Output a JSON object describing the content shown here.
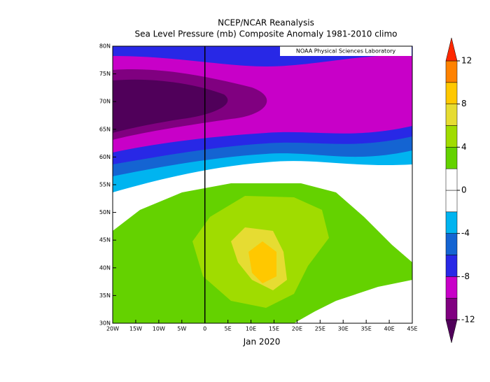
{
  "title": "NCEP/NCAR Reanalysis",
  "subtitle": "Sea Level Pressure (mb) Composite Anomaly 1981-2010 climo",
  "credit": "NOAA Physical Sciences Laboratory",
  "period": "Jan 2020",
  "map": {
    "xlim": [
      -20,
      45
    ],
    "ylim": [
      30,
      80
    ],
    "xticks": [
      {
        "value": -20,
        "label": "20W"
      },
      {
        "value": -15,
        "label": "15W"
      },
      {
        "value": -10,
        "label": "10W"
      },
      {
        "value": -5,
        "label": "5W"
      },
      {
        "value": 0,
        "label": "0"
      },
      {
        "value": 5,
        "label": "5E"
      },
      {
        "value": 10,
        "label": "10E"
      },
      {
        "value": 15,
        "label": "15E"
      },
      {
        "value": 20,
        "label": "20E"
      },
      {
        "value": 25,
        "label": "25E"
      },
      {
        "value": 30,
        "label": "30E"
      },
      {
        "value": 35,
        "label": "35E"
      },
      {
        "value": 40,
        "label": "40E"
      },
      {
        "value": 45,
        "label": "45E"
      }
    ],
    "yticks": [
      {
        "value": 30,
        "label": "30N"
      },
      {
        "value": 35,
        "label": "35N"
      },
      {
        "value": 40,
        "label": "40N"
      },
      {
        "value": 45,
        "label": "45N"
      },
      {
        "value": 50,
        "label": "50N"
      },
      {
        "value": 55,
        "label": "55N"
      },
      {
        "value": 60,
        "label": "60N"
      },
      {
        "value": 65,
        "label": "65N"
      },
      {
        "value": 70,
        "label": "70N"
      },
      {
        "value": 75,
        "label": "75N"
      },
      {
        "value": 80,
        "label": "80N"
      }
    ]
  },
  "colorbar": {
    "clim": [
      -12,
      12
    ],
    "ticks": [
      -12,
      -8,
      -4,
      0,
      4,
      8,
      12
    ],
    "colors": [
      "#800080",
      "#c800c8",
      "#2828e6",
      "#1464d2",
      "#00b4f0",
      "#ffffff",
      "#ffffff",
      "#64d200",
      "#a0dc00",
      "#e6dc32",
      "#ffc800",
      "#ff8200"
    ],
    "under": "#50005a",
    "over": "#ff2800"
  }
}
